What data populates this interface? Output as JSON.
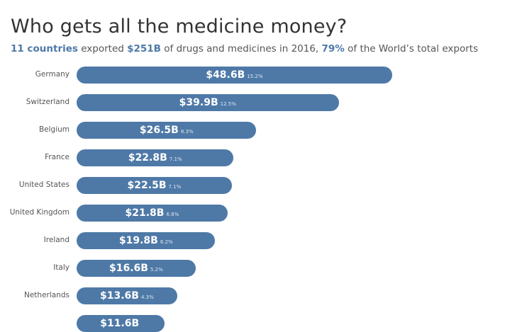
{
  "title": "Who gets all the medicine money?",
  "subtitle": {
    "p1": "11 countries",
    "p2": " exported ",
    "p3": "$251B",
    "p4": " of drugs and medicines in 2016, ",
    "p5": "79%",
    "p6": " of the World’s total exports"
  },
  "colors": {
    "bar": "#4e79a7",
    "highlight": "#4e79a7"
  },
  "chart_data": {
    "type": "bar",
    "orientation": "horizontal",
    "categories": [
      "Germany",
      "Switzerland",
      "Belgium",
      "France",
      "United States",
      "United Kingdom",
      "Ireland",
      "Italy",
      "Netherlands",
      ""
    ],
    "values": [
      48.6,
      39.9,
      26.5,
      22.8,
      22.5,
      21.8,
      19.8,
      16.6,
      13.6,
      11.6
    ],
    "value_labels": [
      "$48.6B",
      "$39.9B",
      "$26.5B",
      "$22.8B",
      "$22.5B",
      "$21.8B",
      "$19.8B",
      "$16.6B",
      "$13.6B",
      "$11.6B"
    ],
    "share_labels": [
      "15.2%",
      "12.5%",
      "8.3%",
      "7.1%",
      "7.1%",
      "6.8%",
      "6.2%",
      "5.2%",
      "4.3%",
      ""
    ],
    "unit": "USD billions"
  }
}
